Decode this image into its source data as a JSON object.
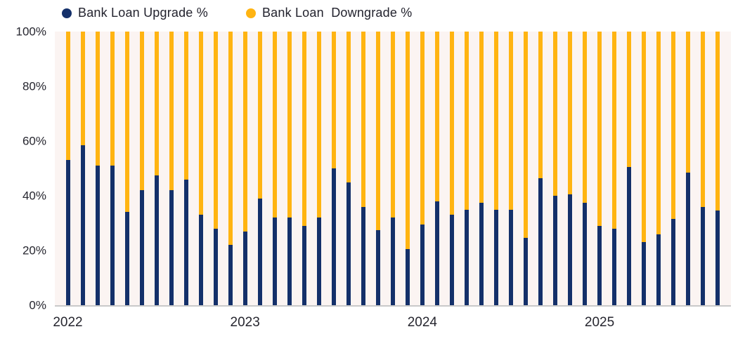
{
  "legend": {
    "items": [
      {
        "label": "Bank Loan Upgrade %",
        "color": "#14306A"
      },
      {
        "label": "Bank Loan  Downgrade %",
        "color": "#FFB412"
      }
    ]
  },
  "y_axis": {
    "ticks": [
      "0%",
      "20%",
      "40%",
      "60%",
      "80%",
      "100%"
    ]
  },
  "x_axis": {
    "year_labels": [
      "2022",
      "2023",
      "2024",
      "2025"
    ]
  },
  "chart_data": {
    "type": "bar",
    "stacked": true,
    "title": "",
    "xlabel": "",
    "ylabel": "",
    "ylim": [
      0,
      100
    ],
    "ytick_values": [
      0,
      20,
      40,
      60,
      80,
      100
    ],
    "ytick_labels": [
      "0%",
      "20%",
      "40%",
      "60%",
      "80%",
      "100%"
    ],
    "grid": false,
    "legend_position": "top",
    "plot_background": "#FBF4F2",
    "x": [
      "2022-01",
      "2022-02",
      "2022-03",
      "2022-04",
      "2022-05",
      "2022-06",
      "2022-07",
      "2022-08",
      "2022-09",
      "2022-10",
      "2022-11",
      "2022-12",
      "2023-01",
      "2023-02",
      "2023-03",
      "2023-04",
      "2023-05",
      "2023-06",
      "2023-07",
      "2023-08",
      "2023-09",
      "2023-10",
      "2023-11",
      "2023-12",
      "2024-01",
      "2024-02",
      "2024-03",
      "2024-04",
      "2024-05",
      "2024-06",
      "2024-07",
      "2024-08",
      "2024-09",
      "2024-10",
      "2024-11",
      "2024-12",
      "2025-01",
      "2025-02",
      "2025-03",
      "2025-04",
      "2025-05",
      "2025-06",
      "2025-07",
      "2025-08",
      "2025-09"
    ],
    "series": [
      {
        "name": "Bank Loan Upgrade %",
        "color": "#14306A",
        "values": [
          53,
          58.5,
          51,
          51,
          34,
          42,
          47.5,
          42,
          46,
          33,
          28,
          22,
          27,
          39,
          32,
          32,
          29,
          32,
          50,
          45,
          36,
          27.5,
          32,
          20.5,
          29.5,
          38,
          33,
          35,
          37.5,
          35,
          35,
          24.5,
          46.5,
          40,
          40.5,
          37.5,
          29,
          28,
          50.5,
          23,
          26,
          31.5,
          48.5,
          36,
          34.5
        ]
      },
      {
        "name": "Bank Loan  Downgrade %",
        "color": "#FFB412",
        "values": [
          47,
          41.5,
          49,
          49,
          66,
          58,
          52.5,
          58,
          54,
          67,
          72,
          78,
          73,
          61,
          68,
          68,
          71,
          68,
          50,
          55,
          64,
          72.5,
          68,
          79.5,
          70.5,
          62,
          67,
          65,
          62.5,
          65,
          65,
          75.5,
          53.5,
          60,
          59.5,
          62.5,
          71,
          72,
          49.5,
          77,
          74,
          68.5,
          51.5,
          64,
          65.5
        ]
      }
    ]
  }
}
